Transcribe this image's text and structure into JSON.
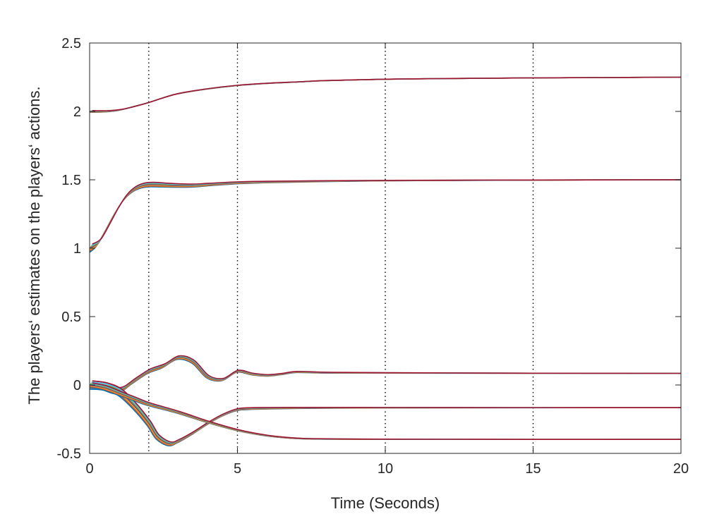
{
  "chart_data": {
    "type": "line",
    "title": "",
    "xlabel": "Time (Seconds)",
    "ylabel": "The players‘ estimates on the players‘ actions.",
    "xlim": [
      0,
      20
    ],
    "ylim": [
      -0.5,
      2.5
    ],
    "xticks": [
      0,
      5,
      10,
      15,
      20
    ],
    "yticks": [
      -0.5,
      0,
      0.5,
      1,
      1.5,
      2,
      2.5
    ],
    "xtick_labels": [
      "0",
      "5",
      "10",
      "15",
      "20"
    ],
    "ytick_labels": [
      "-0.5",
      "0",
      "0.5",
      "1",
      "1.5",
      "2",
      "2.5"
    ],
    "vlines": [
      2,
      5,
      10,
      15
    ],
    "grid": false,
    "colors": [
      "#0072BD",
      "#D95319",
      "#EDB120",
      "#7E2F8E",
      "#77AC30",
      "#4DBEEE",
      "#A2142F"
    ],
    "groups": [
      {
        "x": [
          0,
          0.5,
          1,
          1.5,
          2,
          2.5,
          3,
          4,
          5,
          6,
          7,
          8,
          10,
          12,
          15,
          20
        ],
        "y": [
          2.0,
          2.0,
          2.01,
          2.035,
          2.065,
          2.1,
          2.13,
          2.165,
          2.19,
          2.205,
          2.215,
          2.225,
          2.235,
          2.24,
          2.245,
          2.25
        ],
        "spread": 0.006
      },
      {
        "x": [
          0,
          0.3,
          0.6,
          0.9,
          1.2,
          1.5,
          1.8,
          2.1,
          2.5,
          3,
          3.5,
          4,
          5,
          6,
          8,
          10,
          15,
          20
        ],
        "y": [
          1.0,
          1.04,
          1.15,
          1.27,
          1.37,
          1.43,
          1.458,
          1.465,
          1.462,
          1.458,
          1.458,
          1.465,
          1.478,
          1.484,
          1.49,
          1.494,
          1.498,
          1.5
        ],
        "spread": 0.03
      },
      {
        "x": [
          0,
          0.5,
          1,
          1.5,
          2,
          2.5,
          3,
          3.5,
          4,
          4.5,
          5,
          5.5,
          6,
          6.5,
          7,
          8,
          10,
          15,
          20
        ],
        "y": [
          0.0,
          -0.01,
          -0.04,
          0.03,
          0.1,
          0.14,
          0.2,
          0.17,
          0.06,
          0.04,
          0.1,
          0.08,
          0.07,
          0.08,
          0.095,
          0.09,
          0.088,
          0.086,
          0.085
        ],
        "spread": 0.03
      },
      {
        "x": [
          0,
          0.5,
          1,
          1.5,
          2,
          2.3,
          2.7,
          3,
          3.5,
          4,
          4.5,
          5,
          5.5,
          6,
          7,
          8,
          10,
          15,
          20
        ],
        "y": [
          0.0,
          -0.01,
          -0.05,
          -0.15,
          -0.28,
          -0.38,
          -0.43,
          -0.41,
          -0.35,
          -0.28,
          -0.22,
          -0.18,
          -0.172,
          -0.17,
          -0.168,
          -0.167,
          -0.166,
          -0.166,
          -0.166
        ],
        "spread": 0.03
      },
      {
        "x": [
          0,
          0.5,
          1,
          1.5,
          2,
          3,
          4,
          5,
          6,
          7,
          8,
          10,
          15,
          20
        ],
        "y": [
          0.0,
          -0.02,
          -0.06,
          -0.1,
          -0.14,
          -0.2,
          -0.27,
          -0.33,
          -0.37,
          -0.39,
          -0.395,
          -0.397,
          -0.398,
          -0.398
        ],
        "spread": 0.015
      }
    ]
  }
}
